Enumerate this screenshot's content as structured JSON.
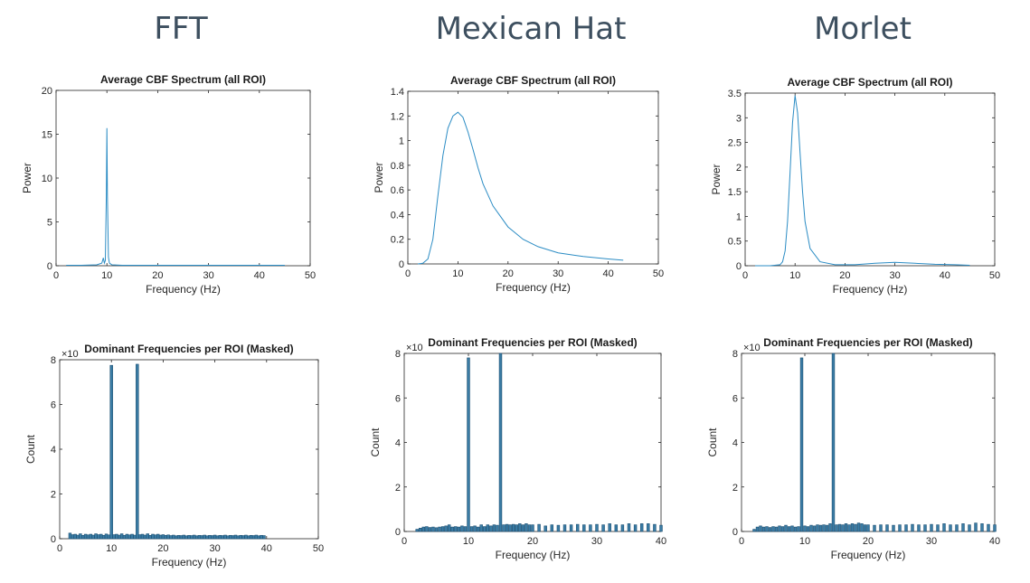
{
  "column_titles": [
    "FFT",
    "Mexican Hat",
    "Morlet"
  ],
  "colors": {
    "line": "#2b8cc4",
    "bar_fill": "#3a7ca5",
    "bar_stroke": "#1b4f72",
    "axis": "#262626",
    "title_text": "#3d4f5f"
  },
  "chart_data": [
    {
      "type": "line",
      "method": "FFT",
      "title": "Average CBF Spectrum (all ROI)",
      "xlabel": "Frequency (Hz)",
      "ylabel": "Power",
      "xlim": [
        0,
        50
      ],
      "ylim": [
        0,
        20
      ],
      "xticks": [
        "0",
        "10",
        "20",
        "30",
        "40",
        "50"
      ],
      "yticks": [
        "0",
        "5",
        "10",
        "15",
        "20"
      ],
      "x": [
        2,
        5,
        8,
        9,
        9.3,
        9.5,
        9.7,
        9.9,
        10,
        10.1,
        10.3,
        10.5,
        11,
        13,
        20,
        30,
        45
      ],
      "y": [
        0.05,
        0.05,
        0.1,
        0.3,
        0.9,
        0.3,
        0.6,
        8,
        15.7,
        8,
        1,
        0.3,
        0.1,
        0.05,
        0.05,
        0.05,
        0.05
      ]
    },
    {
      "type": "line",
      "method": "Mexican Hat",
      "title": "Average CBF Spectrum (all ROI)",
      "xlabel": "Frequency (Hz)",
      "ylabel": "Power",
      "xlim": [
        0,
        50
      ],
      "ylim": [
        0,
        1.4
      ],
      "xticks": [
        "0",
        "10",
        "20",
        "30",
        "40",
        "50"
      ],
      "yticks": [
        "0",
        "0.2",
        "0.4",
        "0.6",
        "0.8",
        "1",
        "1.2",
        "1.4"
      ],
      "x": [
        2,
        3,
        4,
        5,
        6,
        7,
        8,
        9,
        10,
        11,
        12,
        13,
        14,
        15,
        17,
        20,
        23,
        26,
        30,
        35,
        40,
        43
      ],
      "y": [
        0,
        0.005,
        0.04,
        0.2,
        0.55,
        0.88,
        1.1,
        1.2,
        1.23,
        1.19,
        1.07,
        0.93,
        0.78,
        0.65,
        0.47,
        0.3,
        0.2,
        0.14,
        0.09,
        0.06,
        0.04,
        0.03
      ]
    },
    {
      "type": "line",
      "method": "Morlet",
      "title": "Average CBF Spectrum (all ROI)",
      "xlabel": "Frequency (Hz)",
      "ylabel": "Power",
      "xlim": [
        0,
        50
      ],
      "ylim": [
        0,
        3.5
      ],
      "xticks": [
        "0",
        "10",
        "20",
        "30",
        "40",
        "50"
      ],
      "yticks": [
        "0",
        "0.5",
        "1",
        "1.5",
        "2",
        "2.5",
        "3",
        "3.5"
      ],
      "x": [
        2,
        5,
        7,
        7.5,
        8,
        8.5,
        9,
        9.5,
        10,
        10.5,
        11,
        11.5,
        12,
        13,
        15,
        18,
        22,
        26,
        30,
        34,
        38,
        42,
        45
      ],
      "y": [
        0,
        0,
        0.02,
        0.08,
        0.3,
        0.9,
        1.9,
        2.9,
        3.45,
        3.1,
        2.3,
        1.5,
        0.9,
        0.35,
        0.08,
        0.02,
        0.02,
        0.05,
        0.07,
        0.05,
        0.03,
        0.02,
        0.01
      ]
    },
    {
      "type": "bar",
      "method": "FFT",
      "title": "Dominant Frequencies per ROI (Masked)",
      "xlabel": "Frequency (Hz)",
      "ylabel": "Count",
      "exponent_label": "×10",
      "xlim": [
        0,
        50
      ],
      "ylim": [
        0,
        8
      ],
      "xticks": [
        "0",
        "10",
        "20",
        "30",
        "40",
        "50"
      ],
      "yticks": [
        "0",
        "2",
        "4",
        "6",
        "8"
      ],
      "bar_width": 0.5,
      "x": [
        2,
        2.5,
        3,
        3.5,
        4,
        4.5,
        5,
        5.5,
        6,
        6.5,
        7,
        7.5,
        8,
        8.5,
        9,
        9.5,
        10,
        10.5,
        11,
        11.5,
        12,
        12.5,
        13,
        13.5,
        14,
        14.5,
        15,
        15.5,
        16,
        16.5,
        17,
        17.5,
        18,
        18.5,
        19,
        19.5,
        20,
        20.5,
        21,
        21.5,
        22,
        22.5,
        23,
        23.5,
        24,
        24.5,
        25,
        25.5,
        26,
        26.5,
        27,
        27.5,
        28,
        28.5,
        29,
        29.5,
        30,
        30.5,
        31,
        31.5,
        32,
        32.5,
        33,
        33.5,
        34,
        34.5,
        35,
        35.5,
        36,
        36.5,
        37,
        37.5,
        38,
        38.5,
        39,
        39.5
      ],
      "values": [
        0.25,
        0.18,
        0.2,
        0.16,
        0.22,
        0.15,
        0.2,
        0.17,
        0.2,
        0.16,
        0.22,
        0.18,
        0.2,
        0.15,
        0.21,
        0.17,
        7.75,
        0.18,
        0.2,
        0.16,
        0.22,
        0.15,
        0.2,
        0.17,
        0.2,
        0.16,
        7.8,
        0.18,
        0.2,
        0.16,
        0.22,
        0.15,
        0.2,
        0.17,
        0.2,
        0.16,
        0.18,
        0.15,
        0.17,
        0.14,
        0.16,
        0.13,
        0.15,
        0.14,
        0.16,
        0.13,
        0.15,
        0.14,
        0.16,
        0.13,
        0.15,
        0.14,
        0.16,
        0.13,
        0.15,
        0.14,
        0.16,
        0.13,
        0.15,
        0.14,
        0.16,
        0.13,
        0.15,
        0.14,
        0.16,
        0.13,
        0.15,
        0.14,
        0.16,
        0.13,
        0.15,
        0.14,
        0.16,
        0.13,
        0.15,
        0.14
      ]
    },
    {
      "type": "bar",
      "method": "Mexican Hat",
      "title": "Dominant Frequencies per ROI (Masked)",
      "xlabel": "Frequency (Hz)",
      "ylabel": "Count",
      "exponent_label": "×10",
      "xlim": [
        0,
        40
      ],
      "ylim": [
        0,
        8
      ],
      "xticks": [
        "0",
        "10",
        "20",
        "30",
        "40"
      ],
      "yticks": [
        "0",
        "2",
        "4",
        "6",
        "8"
      ],
      "bar_width": 0.4,
      "x": [
        2,
        2.5,
        3,
        3.5,
        4,
        4.5,
        5,
        5.5,
        6,
        6.5,
        7,
        7.5,
        8,
        8.5,
        9,
        9.5,
        10,
        10.5,
        11,
        11.5,
        12,
        12.5,
        13,
        13.5,
        14,
        14.5,
        15,
        15.5,
        16,
        16.5,
        17,
        17.5,
        18,
        18.5,
        19,
        19.5,
        20,
        21,
        22,
        23,
        24,
        25,
        26,
        27,
        28,
        29,
        30,
        31,
        32,
        33,
        34,
        35,
        36,
        37,
        38,
        39,
        40
      ],
      "values": [
        0.1,
        0.15,
        0.2,
        0.22,
        0.18,
        0.2,
        0.17,
        0.2,
        0.22,
        0.25,
        0.3,
        0.2,
        0.22,
        0.2,
        0.25,
        0.22,
        7.8,
        0.22,
        0.25,
        0.2,
        0.3,
        0.22,
        0.3,
        0.25,
        0.3,
        0.28,
        8.0,
        0.3,
        0.32,
        0.3,
        0.32,
        0.3,
        0.35,
        0.3,
        0.35,
        0.3,
        0.3,
        0.32,
        0.25,
        0.3,
        0.28,
        0.3,
        0.3,
        0.32,
        0.3,
        0.3,
        0.32,
        0.3,
        0.35,
        0.3,
        0.3,
        0.35,
        0.3,
        0.35,
        0.35,
        0.32,
        0.28
      ]
    },
    {
      "type": "bar",
      "method": "Morlet",
      "title": "Dominant Frequencies per ROI (Masked)",
      "xlabel": "Frequency (Hz)",
      "ylabel": "Count",
      "exponent_label": "×10",
      "xlim": [
        0,
        40
      ],
      "ylim": [
        0,
        8
      ],
      "xticks": [
        "0",
        "10",
        "20",
        "30",
        "40"
      ],
      "yticks": [
        "0",
        "2",
        "4",
        "6",
        "8"
      ],
      "bar_width": 0.4,
      "x": [
        2,
        2.5,
        3,
        3.5,
        4,
        4.5,
        5,
        5.5,
        6,
        6.5,
        7,
        7.5,
        8,
        8.5,
        9,
        9.5,
        10,
        10.5,
        11,
        11.5,
        12,
        12.5,
        13,
        13.5,
        14,
        14.5,
        15,
        15.5,
        16,
        16.5,
        17,
        17.5,
        18,
        18.5,
        19,
        19.5,
        20,
        21,
        22,
        23,
        24,
        25,
        26,
        27,
        28,
        29,
        30,
        31,
        32,
        33,
        34,
        35,
        36,
        37,
        38,
        39,
        40
      ],
      "values": [
        0.1,
        0.2,
        0.25,
        0.2,
        0.22,
        0.18,
        0.22,
        0.2,
        0.25,
        0.22,
        0.28,
        0.22,
        0.25,
        0.2,
        0.22,
        7.8,
        0.25,
        0.22,
        0.28,
        0.25,
        0.3,
        0.28,
        0.3,
        0.28,
        0.35,
        8.0,
        0.3,
        0.32,
        0.3,
        0.35,
        0.3,
        0.35,
        0.32,
        0.38,
        0.35,
        0.3,
        0.3,
        0.28,
        0.3,
        0.3,
        0.28,
        0.3,
        0.3,
        0.32,
        0.3,
        0.3,
        0.32,
        0.3,
        0.35,
        0.3,
        0.3,
        0.35,
        0.3,
        0.38,
        0.35,
        0.32,
        0.3
      ]
    }
  ]
}
